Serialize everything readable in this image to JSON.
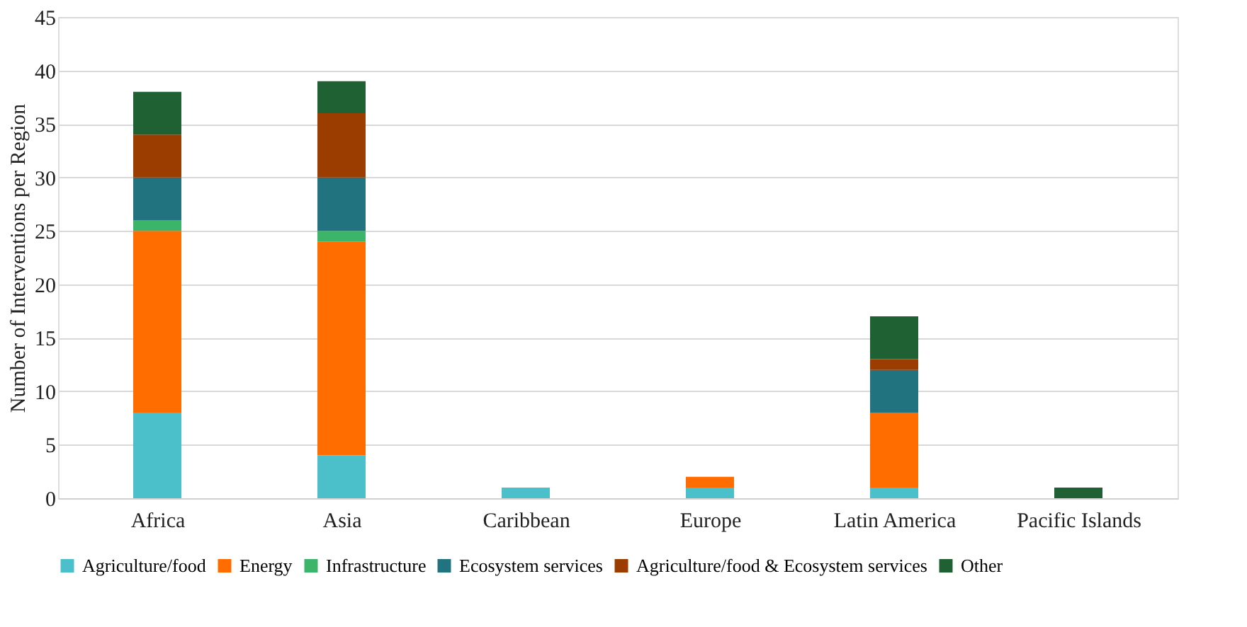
{
  "chart_data": {
    "type": "bar",
    "stacked": true,
    "ylabel": "Number of Interventions per Region",
    "categories": [
      "Africa",
      "Asia",
      "Caribbean",
      "Europe",
      "Latin America",
      "Pacific Islands"
    ],
    "series": [
      {
        "name": "Agriculture/food",
        "color": "#4bbfca",
        "values": [
          8,
          4,
          1,
          1,
          1,
          null
        ]
      },
      {
        "name": "Energy",
        "color": "#ff6d00",
        "values": [
          17,
          20,
          null,
          1,
          7,
          null
        ]
      },
      {
        "name": "Infrastructure",
        "color": "#3cb46a",
        "values": [
          1,
          1,
          null,
          null,
          null,
          null
        ]
      },
      {
        "name": "Ecosystem services",
        "color": "#21747f",
        "values": [
          4,
          5,
          null,
          null,
          4,
          null
        ]
      },
      {
        "name": "Agriculture/food & Ecosystem services",
        "color": "#9c3d00",
        "values": [
          4,
          6,
          null,
          null,
          1,
          null
        ]
      },
      {
        "name": "Other",
        "color": "#1f6132",
        "values": [
          4,
          3,
          null,
          null,
          4,
          1
        ]
      }
    ],
    "ylim": [
      0,
      45
    ],
    "yticks": [
      0,
      5,
      10,
      15,
      20,
      25,
      30,
      35,
      40,
      45
    ],
    "grid": "y",
    "legend": "bottom"
  }
}
